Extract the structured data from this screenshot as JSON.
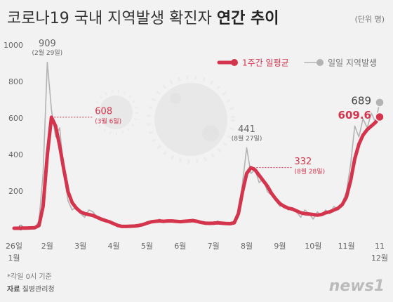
{
  "chart_data": {
    "type": "line",
    "title": "코로나19 국내 지역발생 확진자",
    "title_emphasis": "연간 추이",
    "unit": "(단위 명)",
    "legend": "top-right",
    "grid": false,
    "ylim": [
      0,
      1000
    ],
    "yticks": [
      0,
      200,
      400,
      600,
      800,
      1000
    ],
    "categories": [
      "26일",
      null,
      null,
      null,
      null,
      null,
      null,
      null,
      "2월",
      null,
      null,
      null,
      null,
      null,
      null,
      null,
      "3월",
      null,
      null,
      null,
      null,
      null,
      null,
      null,
      "4월",
      null,
      null,
      null,
      null,
      null,
      null,
      null,
      "5월",
      null,
      null,
      null,
      null,
      null,
      null,
      null,
      "6월",
      null,
      null,
      null,
      null,
      null,
      null,
      null,
      "7월",
      null,
      null,
      null,
      null,
      null,
      null,
      null,
      "8월",
      null,
      null,
      null,
      null,
      null,
      null,
      null,
      "9월",
      null,
      null,
      null,
      null,
      null,
      null,
      null,
      "10월",
      null,
      null,
      null,
      null,
      null,
      null,
      null,
      "11월",
      null,
      null,
      null,
      null,
      null,
      null,
      null,
      "11"
    ],
    "x_sublabels": [
      "1월",
      "12월"
    ],
    "series": [
      {
        "name": "1주간 일평균",
        "color": "#d4344c",
        "values": [
          0,
          0,
          1,
          1,
          2,
          3,
          15,
          120,
          400,
          608,
          560,
          450,
          320,
          200,
          140,
          110,
          90,
          80,
          75,
          70,
          60,
          50,
          42,
          35,
          25,
          15,
          10,
          10,
          11,
          12,
          15,
          20,
          28,
          35,
          38,
          40,
          38,
          40,
          40,
          38,
          36,
          38,
          40,
          42,
          38,
          32,
          28,
          27,
          28,
          30,
          28,
          26,
          25,
          30,
          80,
          200,
          300,
          332,
          320,
          290,
          260,
          230,
          190,
          160,
          135,
          120,
          110,
          105,
          95,
          85,
          80,
          78,
          75,
          72,
          75,
          85,
          90,
          100,
          110,
          130,
          170,
          260,
          380,
          460,
          510,
          540,
          560,
          580,
          609.6
        ],
        "value_labels": [
          null,
          null,
          null,
          null,
          null,
          null,
          null,
          null,
          null,
          "608",
          null,
          null,
          null,
          null,
          null,
          null,
          null,
          null,
          null,
          null,
          null,
          null,
          null,
          null,
          null,
          null,
          null,
          null,
          null,
          null,
          null,
          null,
          null,
          null,
          null,
          null,
          null,
          null,
          null,
          null,
          null,
          null,
          null,
          null,
          null,
          null,
          null,
          null,
          null,
          null,
          null,
          null,
          null,
          null,
          null,
          null,
          null,
          "332",
          null,
          null,
          null,
          null,
          null,
          null,
          null,
          null,
          null,
          null,
          null,
          null,
          null,
          null,
          null,
          null,
          null,
          null,
          null,
          null,
          null,
          null,
          null,
          null,
          null,
          null,
          null,
          null,
          null,
          null,
          "609.6"
        ],
        "value_notes": [
          null,
          null,
          null,
          null,
          null,
          null,
          null,
          null,
          null,
          "(3월 6일)",
          null,
          null,
          null,
          null,
          null,
          null,
          null,
          null,
          null,
          null,
          null,
          null,
          null,
          null,
          null,
          null,
          null,
          null,
          null,
          null,
          null,
          null,
          null,
          null,
          null,
          null,
          null,
          null,
          null,
          null,
          null,
          null,
          null,
          null,
          null,
          null,
          null,
          null,
          null,
          null,
          null,
          null,
          null,
          null,
          null,
          null,
          null,
          "(8월 28일)",
          null,
          null,
          null,
          null,
          null,
          null,
          null,
          null,
          null,
          null,
          null,
          null,
          null,
          null,
          null,
          null,
          null,
          null,
          null,
          null,
          null,
          null,
          null,
          null,
          null,
          null,
          null,
          null,
          null,
          null,
          null
        ]
      },
      {
        "name": "일일 지역발생",
        "color": "#b3b3b3",
        "values": [
          0,
          0,
          1,
          2,
          1,
          3,
          40,
          300,
          909,
          650,
          500,
          550,
          300,
          150,
          100,
          120,
          80,
          60,
          100,
          90,
          60,
          40,
          50,
          30,
          20,
          10,
          8,
          10,
          12,
          8,
          20,
          15,
          25,
          40,
          35,
          50,
          30,
          40,
          45,
          35,
          30,
          40,
          35,
          50,
          40,
          30,
          25,
          30,
          20,
          40,
          30,
          25,
          20,
          30,
          60,
          250,
          441,
          300,
          320,
          250,
          270,
          200,
          180,
          150,
          120,
          130,
          100,
          110,
          90,
          60,
          100,
          80,
          50,
          90,
          70,
          100,
          80,
          120,
          100,
          140,
          200,
          350,
          560,
          500,
          600,
          550,
          630,
          580,
          689
        ],
        "value_labels": [
          null,
          null,
          null,
          null,
          null,
          null,
          null,
          null,
          "909",
          null,
          null,
          null,
          null,
          null,
          null,
          null,
          null,
          null,
          null,
          null,
          null,
          null,
          null,
          null,
          null,
          null,
          null,
          null,
          null,
          null,
          null,
          null,
          null,
          null,
          null,
          null,
          null,
          null,
          null,
          null,
          null,
          null,
          null,
          null,
          null,
          null,
          null,
          null,
          null,
          null,
          null,
          null,
          null,
          null,
          null,
          null,
          "441",
          null,
          null,
          null,
          null,
          null,
          null,
          null,
          null,
          null,
          null,
          null,
          null,
          null,
          null,
          null,
          null,
          null,
          null,
          null,
          null,
          null,
          null,
          null,
          null,
          null,
          null,
          null,
          null,
          null,
          null,
          null,
          "689"
        ],
        "value_notes": [
          null,
          null,
          null,
          null,
          null,
          null,
          null,
          null,
          "(2월 29일)",
          null,
          null,
          null,
          null,
          null,
          null,
          null,
          null,
          null,
          null,
          null,
          null,
          null,
          null,
          null,
          null,
          null,
          null,
          null,
          null,
          null,
          null,
          null,
          null,
          null,
          null,
          null,
          null,
          null,
          null,
          null,
          null,
          null,
          null,
          null,
          null,
          null,
          null,
          null,
          null,
          null,
          null,
          null,
          null,
          null,
          null,
          null,
          "(8월 27일)",
          null,
          null,
          null,
          null,
          null,
          null,
          null,
          null,
          null,
          null,
          null,
          null,
          null,
          null,
          null,
          null,
          null,
          null,
          null,
          null,
          null,
          null,
          null,
          null,
          null,
          null,
          null,
          null,
          null,
          null,
          null,
          null
        ]
      }
    ],
    "source_note": "*각일 0시 기준",
    "source_label": "자료",
    "source": "질병관리청",
    "logo": "news1"
  }
}
